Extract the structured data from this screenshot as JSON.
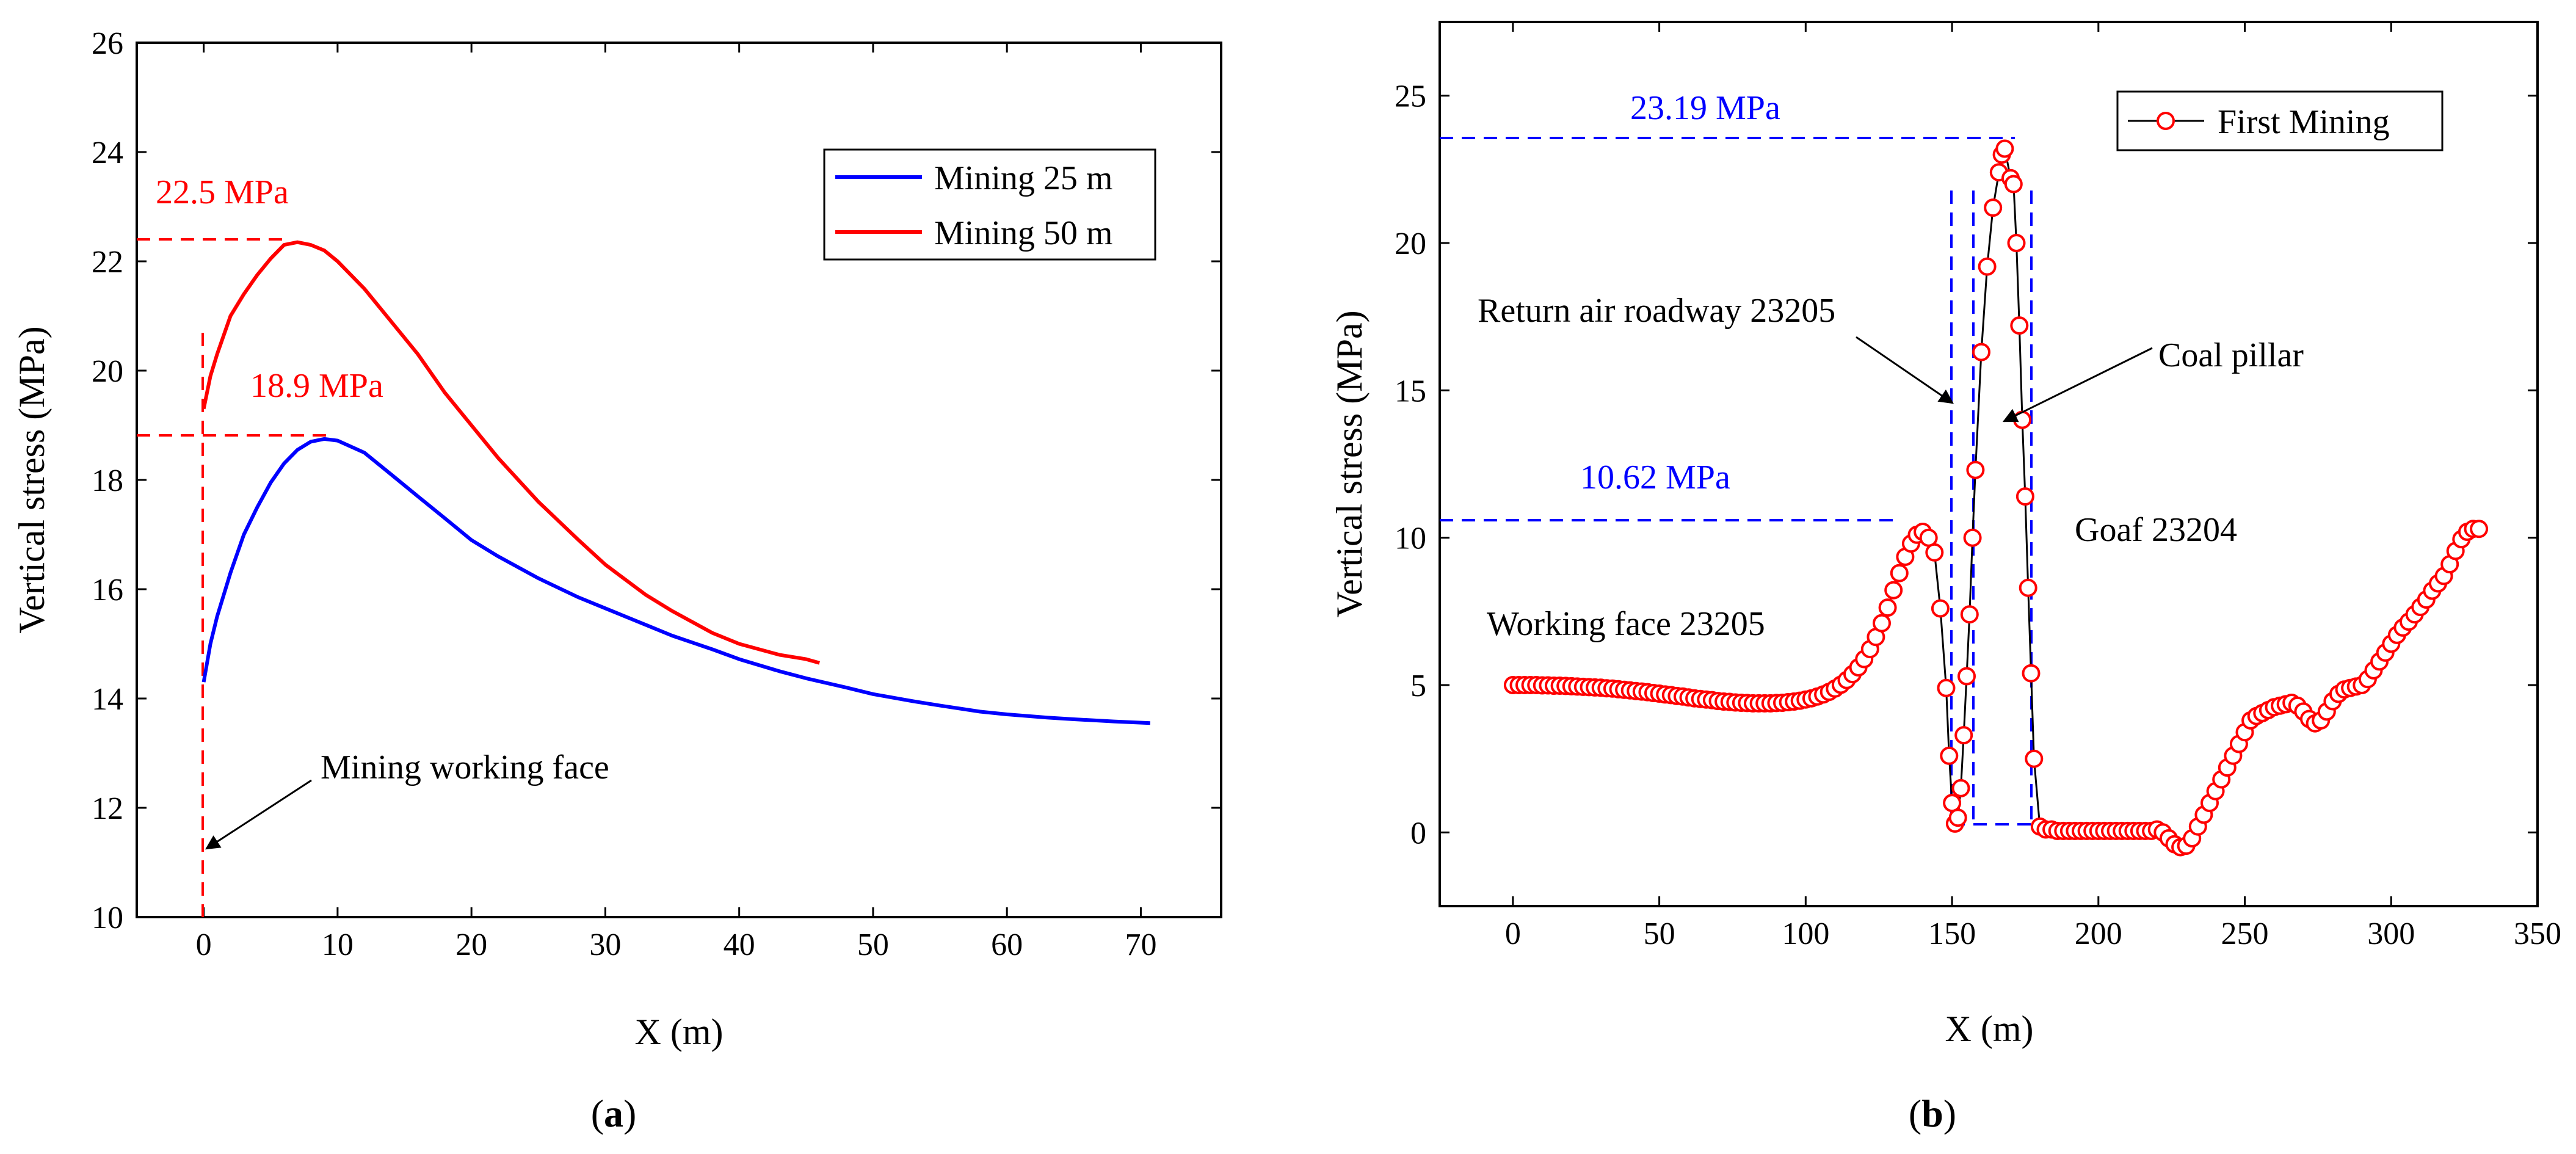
{
  "colors": {
    "blue": "#0000ff",
    "red": "#ff0000",
    "black": "#000000"
  },
  "chart_data": [
    {
      "type": "line",
      "panel_label": "(a)",
      "panel_letter": "a",
      "xlabel": "X (m)",
      "ylabel": "Vertical stress (MPa)",
      "xlim": [
        -5,
        76
      ],
      "ylim": [
        10,
        26
      ],
      "xticks": [
        0,
        10,
        20,
        30,
        40,
        50,
        60,
        70
      ],
      "yticks": [
        10,
        12,
        14,
        16,
        18,
        20,
        22,
        24,
        26
      ],
      "legend": {
        "position": "top-right",
        "entries": [
          "Mining 25 m",
          "Mining 50 m"
        ]
      },
      "series": [
        {
          "name": "Mining 25 m",
          "color": "#0000ff",
          "x": [
            0,
            0.5,
            1,
            2,
            3,
            4,
            5,
            6,
            7,
            8,
            9,
            10,
            12,
            14,
            16,
            18,
            20,
            22,
            25,
            28,
            30,
            33,
            35,
            38,
            40,
            43,
            45,
            48,
            50,
            53,
            55,
            58,
            60,
            63,
            65,
            68,
            70.7
          ],
          "y": [
            14.3,
            15.0,
            15.5,
            16.3,
            17.0,
            17.5,
            17.95,
            18.3,
            18.55,
            18.7,
            18.75,
            18.72,
            18.5,
            18.1,
            17.7,
            17.3,
            16.9,
            16.6,
            16.2,
            15.85,
            15.65,
            15.35,
            15.15,
            14.9,
            14.72,
            14.5,
            14.37,
            14.2,
            14.08,
            13.95,
            13.87,
            13.76,
            13.71,
            13.65,
            13.62,
            13.58,
            13.55
          ]
        },
        {
          "name": "Mining 50 m",
          "color": "#ff0000",
          "x": [
            0,
            0.5,
            1,
            2,
            3,
            4,
            5,
            6,
            7,
            8,
            9,
            10,
            12,
            14,
            16,
            18,
            20,
            22,
            25,
            28,
            30,
            33,
            35,
            38,
            40,
            43,
            45,
            46
          ],
          "y": [
            19.3,
            19.9,
            20.3,
            21.0,
            21.4,
            21.75,
            22.05,
            22.3,
            22.35,
            22.3,
            22.2,
            22.0,
            21.5,
            20.9,
            20.3,
            19.6,
            19.0,
            18.4,
            17.6,
            16.9,
            16.45,
            15.9,
            15.6,
            15.2,
            15.0,
            14.8,
            14.72,
            14.65
          ]
        }
      ],
      "annotations": {
        "peak_50": "22.5 MPa",
        "peak_25": "18.9 MPa",
        "face_label": "Mining working face"
      }
    },
    {
      "type": "scatter",
      "panel_label": "(b)",
      "panel_letter": "b",
      "xlabel": "X (m)",
      "ylabel": "Vertical stress (MPa)",
      "xlim": [
        -25,
        350
      ],
      "ylim": [
        -2.5,
        27.5
      ],
      "xticks": [
        0,
        50,
        100,
        150,
        200,
        250,
        300,
        350
      ],
      "yticks": [
        0,
        5,
        10,
        15,
        20,
        25
      ],
      "legend": {
        "position": "top-right",
        "entries": [
          "First Mining"
        ]
      },
      "series": [
        {
          "name": "First Mining",
          "marker_color": "#ff0000",
          "line_color": "#000000",
          "x": [
            0,
            2,
            4,
            6,
            8,
            10,
            12,
            14,
            16,
            18,
            20,
            22,
            24,
            26,
            28,
            30,
            32,
            34,
            36,
            38,
            40,
            42,
            44,
            46,
            48,
            50,
            52,
            54,
            56,
            58,
            60,
            62,
            64,
            66,
            68,
            70,
            72,
            74,
            76,
            78,
            80,
            82,
            84,
            86,
            88,
            90,
            92,
            94,
            96,
            98,
            100,
            102,
            104,
            106,
            108,
            110,
            112,
            114,
            116,
            118,
            120,
            122,
            124,
            126,
            128,
            130,
            132,
            134,
            136,
            138,
            140,
            142,
            144,
            146,
            148,
            149,
            150,
            151,
            152,
            153,
            154,
            155,
            156,
            157,
            158,
            160,
            162,
            164,
            166,
            167,
            168,
            170,
            171,
            172,
            173,
            174,
            175,
            176,
            177,
            178,
            180,
            182,
            184,
            186,
            188,
            190,
            192,
            194,
            196,
            198,
            200,
            202,
            204,
            206,
            208,
            210,
            212,
            214,
            216,
            218,
            220,
            222,
            224,
            226,
            228,
            230,
            232,
            234,
            236,
            238,
            240,
            242,
            244,
            246,
            248,
            250,
            252,
            254,
            256,
            258,
            260,
            262,
            264,
            266,
            268,
            270,
            272,
            274,
            276,
            278,
            280,
            282,
            284,
            286,
            288,
            290,
            292,
            294,
            296,
            298,
            300,
            302,
            304,
            306,
            308,
            310,
            312,
            314,
            316,
            318,
            320,
            322,
            324,
            326,
            328,
            330
          ],
          "y": [
            5.0,
            5.0,
            5.0,
            5.0,
            5.0,
            4.99,
            4.99,
            4.98,
            4.98,
            4.97,
            4.96,
            4.95,
            4.94,
            4.93,
            4.92,
            4.91,
            4.89,
            4.88,
            4.86,
            4.84,
            4.82,
            4.8,
            4.78,
            4.76,
            4.73,
            4.71,
            4.68,
            4.66,
            4.63,
            4.61,
            4.58,
            4.55,
            4.53,
            4.51,
            4.49,
            4.46,
            4.44,
            4.43,
            4.41,
            4.4,
            4.39,
            4.38,
            4.38,
            4.38,
            4.38,
            4.39,
            4.4,
            4.42,
            4.44,
            4.47,
            4.51,
            4.55,
            4.61,
            4.68,
            4.77,
            4.88,
            5.01,
            5.17,
            5.37,
            5.6,
            5.88,
            6.22,
            6.63,
            7.1,
            7.63,
            8.22,
            8.8,
            9.35,
            9.8,
            10.1,
            10.2,
            10.0,
            9.5,
            7.6,
            4.9,
            2.6,
            1.0,
            0.3,
            0.5,
            1.5,
            3.3,
            5.3,
            7.4,
            10.0,
            12.3,
            16.3,
            19.2,
            21.2,
            22.4,
            23.0,
            23.2,
            22.2,
            22.0,
            20.0,
            17.2,
            14.0,
            11.4,
            8.3,
            5.4,
            2.5,
            0.2,
            0.1,
            0.1,
            0.05,
            0.05,
            0.05,
            0.05,
            0.05,
            0.05,
            0.05,
            0.05,
            0.05,
            0.05,
            0.05,
            0.05,
            0.05,
            0.05,
            0.05,
            0.05,
            0.05,
            0.1,
            0.0,
            -0.2,
            -0.4,
            -0.5,
            -0.45,
            -0.2,
            0.2,
            0.6,
            1.0,
            1.4,
            1.8,
            2.2,
            2.6,
            3.0,
            3.4,
            3.8,
            3.95,
            4.05,
            4.15,
            4.25,
            4.3,
            4.35,
            4.4,
            4.3,
            4.1,
            3.85,
            3.7,
            3.8,
            4.1,
            4.45,
            4.7,
            4.85,
            4.9,
            4.95,
            5.0,
            5.2,
            5.5,
            5.8,
            6.1,
            6.4,
            6.7,
            6.95,
            7.15,
            7.4,
            7.65,
            7.9,
            8.2,
            8.45,
            8.7,
            9.1,
            9.55,
            9.95,
            10.2,
            10.3,
            10.3
          ]
        }
      ],
      "annotations": {
        "peak_high": "23.19 MPa",
        "peak_low": "10.62 MPa",
        "roadway_label": "Return air roadway 23205",
        "pillar_label": "Coal pillar",
        "goaf_label": "Goaf 23204",
        "face_label": "Working face 23205"
      }
    }
  ]
}
